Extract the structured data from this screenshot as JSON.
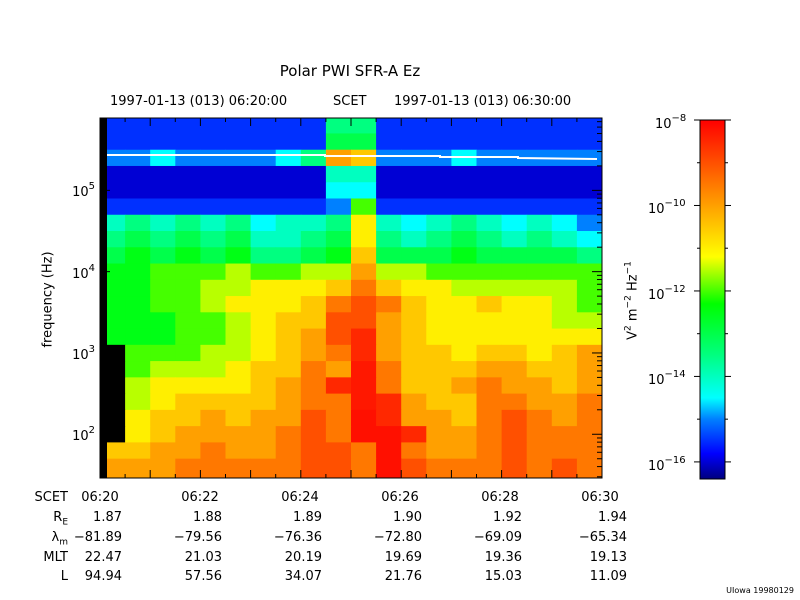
{
  "chart_data": {
    "type": "heatmap",
    "title": "Polar PWI SFR-A Ez",
    "top_axis": {
      "start_label": "1997-01-13 (013) 06:20:00",
      "middle_label": "SCET",
      "end_label": "1997-01-13 (013) 06:30:00"
    },
    "ylabel": "frequency (Hz)",
    "yscale": "log",
    "ylim_log10": [
      1.46,
      5.89
    ],
    "ytick_base": "10",
    "yticks": [
      {
        "exp": "5",
        "value": 5
      },
      {
        "exp": "4",
        "value": 4
      },
      {
        "exp": "3",
        "value": 3
      },
      {
        "exp": "2",
        "value": 2
      }
    ],
    "x_minutes_range": [
      0,
      10
    ],
    "colorbar": {
      "label_main": "V",
      "label_sup1": "2",
      "label_mid": " m",
      "label_sup2": "−2",
      "label_mid2": " Hz",
      "label_sup3": "−1",
      "range_log10": [
        -16.4,
        -8
      ],
      "tick_base": "10",
      "ticks": [
        {
          "exp": "−8",
          "value": -8
        },
        {
          "exp": "−10",
          "value": -10
        },
        {
          "exp": "−12",
          "value": -12
        },
        {
          "exp": "−14",
          "value": -14
        },
        {
          "exp": "−16",
          "value": -16
        }
      ],
      "colormap": [
        {
          "v": -16.4,
          "c": "#00007f"
        },
        {
          "v": -15.8,
          "c": "#0000ff"
        },
        {
          "v": -15.0,
          "c": "#0080ff"
        },
        {
          "v": -14.5,
          "c": "#00ffff"
        },
        {
          "v": -13.5,
          "c": "#00ff80"
        },
        {
          "v": -12.3,
          "c": "#00ff00"
        },
        {
          "v": -11.6,
          "c": "#a0ff00"
        },
        {
          "v": -11.2,
          "c": "#ffff00"
        },
        {
          "v": -10.0,
          "c": "#ffa000"
        },
        {
          "v": -9.2,
          "c": "#ff6000"
        },
        {
          "v": -8.0,
          "c": "#ff0000"
        }
      ]
    },
    "heatmap": {
      "time_step_seconds": 30,
      "row_log10_freq_centers": [
        5.8,
        5.6,
        5.4,
        5.2,
        5.0,
        4.8,
        4.6,
        4.4,
        4.2,
        4.0,
        3.8,
        3.6,
        3.4,
        3.2,
        3.0,
        2.8,
        2.6,
        2.4,
        2.2,
        2.0,
        1.8,
        1.6
      ],
      "log10_power": [
        [
          -15.5,
          -15.5,
          -15.5,
          -15.5,
          -15.5,
          -15.5,
          -15.5,
          -15.5,
          -15.5,
          -13.5,
          -13.5,
          -15.5,
          -15.5,
          -15.5,
          -15.5,
          -15.5,
          -15.5,
          -15.5,
          -15.5,
          -15.5
        ],
        [
          -15.5,
          -15.5,
          -15.5,
          -15.5,
          -15.5,
          -15.5,
          -15.5,
          -15.5,
          -15.5,
          -13,
          -13,
          -15.5,
          -15.5,
          -15.5,
          -15.5,
          -15.5,
          -15.5,
          -15.5,
          -15.5,
          -15.5
        ],
        [
          -15,
          -15,
          -14.5,
          -15,
          -15,
          -15,
          -15,
          -14.5,
          -13.5,
          -10,
          -10.5,
          -15,
          -15,
          -15,
          -14.5,
          -15,
          -15,
          -15,
          -15,
          -15
        ],
        [
          -16,
          -16,
          -16,
          -16,
          -16,
          -16,
          -16,
          -16,
          -16,
          -14,
          -14,
          -16,
          -16,
          -16,
          -16,
          -16,
          -16,
          -16,
          -16,
          -16
        ],
        [
          -16,
          -16,
          -16,
          -16,
          -16,
          -16,
          -16,
          -16,
          -16,
          -14.5,
          -14.5,
          -16,
          -16,
          -16,
          -16,
          -16,
          -16,
          -16,
          -16,
          -16
        ],
        [
          -15.5,
          -15.5,
          -15.5,
          -15.5,
          -15.5,
          -15.5,
          -15.5,
          -15.5,
          -15.5,
          -15,
          -12,
          -15.5,
          -15.5,
          -15.5,
          -15.5,
          -15.5,
          -15.5,
          -15.5,
          -15.5,
          -15.5
        ],
        [
          -14,
          -13.5,
          -14,
          -13.5,
          -14,
          -13.5,
          -14.5,
          -14,
          -14,
          -13.5,
          -11,
          -14,
          -14.5,
          -14,
          -13.5,
          -14,
          -14.5,
          -14,
          -14.5,
          -15
        ],
        [
          -13.5,
          -13,
          -13.5,
          -13,
          -13.5,
          -13,
          -14,
          -14,
          -13.5,
          -13,
          -11,
          -13.5,
          -14,
          -13.5,
          -13,
          -13.5,
          -14,
          -13.5,
          -14,
          -14.5
        ],
        [
          -13,
          -12.5,
          -13,
          -12.5,
          -13,
          -12.5,
          -13.5,
          -13.5,
          -13,
          -12.5,
          -10.5,
          -13,
          -13,
          -13,
          -12.5,
          -13,
          -13,
          -13,
          -13,
          -13.5
        ],
        [
          -12.5,
          -12.5,
          -12,
          -12,
          -12,
          -11.5,
          -12,
          -12,
          -11.5,
          -11.5,
          -10,
          -11.5,
          -11.5,
          -12,
          -12,
          -12,
          -12,
          -12,
          -12,
          -12
        ],
        [
          -12.5,
          -12.5,
          -12,
          -12,
          -11.5,
          -11.5,
          -11,
          -11,
          -11,
          -10.5,
          -9.5,
          -10.5,
          -11,
          -11,
          -11.5,
          -11.5,
          -11.5,
          -11.5,
          -11.5,
          -12
        ],
        [
          -12.5,
          -12.5,
          -12,
          -12,
          -11.5,
          -11,
          -11,
          -11,
          -10.5,
          -9.5,
          -9,
          -9.5,
          -10.5,
          -11,
          -11,
          -10.5,
          -11,
          -11,
          -11.5,
          -12
        ],
        [
          -12.5,
          -12.5,
          -12.5,
          -12,
          -12,
          -11.5,
          -11,
          -10.5,
          -10.5,
          -9,
          -9,
          -10,
          -10.5,
          -11,
          -11,
          -11,
          -11,
          -11,
          -11.5,
          -11.5
        ],
        [
          -12.5,
          -12.5,
          -12.5,
          -12,
          -12,
          -11.5,
          -11,
          -10.5,
          -10,
          -9,
          -8.5,
          -10,
          -10.5,
          -11,
          -11,
          -11,
          -11,
          -11,
          -11,
          -11
        ],
        [
          null,
          -12,
          -12,
          -12,
          -11.5,
          -11.5,
          -11,
          -10.5,
          -10,
          -9.5,
          -8.5,
          -10,
          -10.5,
          -10.5,
          -11,
          -10.5,
          -10.5,
          -11,
          -10.5,
          -10
        ],
        [
          null,
          -12,
          -11.5,
          -11.5,
          -11.5,
          -11,
          -10.5,
          -10.5,
          -9.5,
          -10,
          -8.3,
          -9.5,
          -10.5,
          -10.5,
          -10.5,
          -10,
          -10,
          -10.5,
          -10.5,
          -10
        ],
        [
          null,
          -11.5,
          -11,
          -11,
          -11,
          -11,
          -10.5,
          -10,
          -9.5,
          -8.5,
          -8.3,
          -9.5,
          -10.5,
          -10.5,
          -10,
          -9.5,
          -10,
          -10,
          -10.5,
          -10
        ],
        [
          null,
          -11.5,
          -11,
          -10.5,
          -10.5,
          -10.5,
          -10.5,
          -10,
          -9.5,
          -9.5,
          -8.3,
          -8.5,
          -10,
          -10.5,
          -10.5,
          -9.5,
          -9.5,
          -10,
          -10,
          -9.5
        ],
        [
          null,
          -11,
          -10.5,
          -10.5,
          -10,
          -10.5,
          -10,
          -10,
          -9,
          -9.5,
          -8.2,
          -8.5,
          -10,
          -10,
          -10.5,
          -9.5,
          -9,
          -9.5,
          -10,
          -9.5
        ],
        [
          null,
          -11,
          -10.5,
          -10,
          -10,
          -10,
          -10,
          -9.5,
          -9,
          -9.5,
          -8.2,
          -8.2,
          -8.5,
          -10,
          -10,
          -9.5,
          -9,
          -9.5,
          -9.5,
          -9.5
        ],
        [
          -10.5,
          -10.5,
          -10,
          -10,
          -9.5,
          -10,
          -10,
          -9.5,
          -9,
          -9,
          -9.5,
          -8.2,
          -9.5,
          -10,
          -10,
          -9.5,
          -9,
          -9.5,
          -9.5,
          -9.5
        ],
        [
          -10,
          -10,
          -10,
          -9.5,
          -9.5,
          -9.5,
          -9.5,
          -9.5,
          -9,
          -9,
          -9.5,
          -8.2,
          -9,
          -9.5,
          -9.5,
          -9.5,
          -9,
          -9.5,
          -9,
          -9.5
        ]
      ]
    },
    "ephemeris": {
      "labels": {
        "scet": "SCET",
        "re_main": "R",
        "re_sub": "E",
        "lam_main": "λ",
        "lam_sub": "m",
        "mlt": "MLT",
        "l": "L"
      },
      "scet": [
        "06:20",
        "06:22",
        "06:24",
        "06:26",
        "06:28",
        "06:30"
      ],
      "re": [
        "1.87",
        "1.88",
        "1.89",
        "1.90",
        "1.92",
        "1.94"
      ],
      "lambda_m": [
        "−81.89",
        "−79.56",
        "−76.36",
        "−72.80",
        "−69.09",
        "−65.34"
      ],
      "mlt": [
        "22.47",
        "21.03",
        "20.19",
        "19.69",
        "19.36",
        "19.13"
      ],
      "l": [
        "94.94",
        "57.56",
        "34.07",
        "21.76",
        "15.03",
        "11.09"
      ]
    }
  },
  "footer": {
    "credit": "UIowa 19980129"
  }
}
